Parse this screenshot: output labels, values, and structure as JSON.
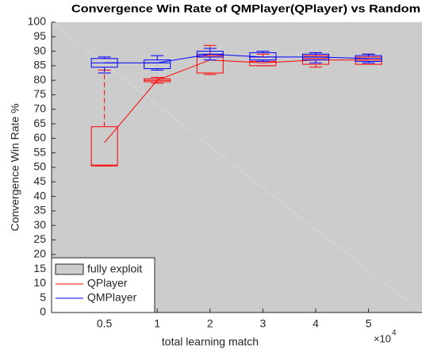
{
  "chart_data": {
    "type": "box",
    "title": "Convergence Win Rate of QMPlayer(QPlayer) vs Random",
    "x_label": "total learning match",
    "x_multiplier": {
      "base": "×10",
      "exponent": "4"
    },
    "y_label": "Convergence Win Rate %",
    "categories": [
      "0.5",
      "1",
      "2",
      "3",
      "4",
      "5"
    ],
    "ylim": [
      0,
      100
    ],
    "yticks": [
      0,
      5,
      10,
      15,
      20,
      25,
      30,
      35,
      40,
      45,
      50,
      55,
      60,
      65,
      70,
      75,
      80,
      85,
      90,
      95,
      100
    ],
    "background": {
      "name": "fully exploit",
      "color": "#cccccc"
    },
    "legend": "lower left",
    "series": [
      {
        "name": "QPlayer",
        "color": "#ff0000",
        "whislo": [
          50.5,
          79,
          82,
          85,
          84.5,
          85.5
        ],
        "q1": [
          50.5,
          79.5,
          82.5,
          85,
          85.5,
          85.5
        ],
        "med": [
          50.8,
          80,
          88,
          86.5,
          87.5,
          87
        ],
        "q3": [
          64,
          80.5,
          88.5,
          88,
          88.5,
          88
        ],
        "whishi": [
          83.5,
          81,
          92,
          89,
          89.5,
          89
        ],
        "mean": [
          58.5,
          80,
          87,
          86,
          87,
          87
        ]
      },
      {
        "name": "QMPlayer",
        "color": "#0000ff",
        "whislo": [
          82.5,
          83.5,
          87,
          86.5,
          86,
          86
        ],
        "q1": [
          84.5,
          84,
          88,
          87,
          87,
          86.5
        ],
        "med": [
          86,
          86,
          89,
          88,
          88,
          87.5
        ],
        "q3": [
          87.5,
          87,
          90,
          89.5,
          89,
          88.5
        ],
        "whishi": [
          88,
          88.5,
          91,
          90,
          89.5,
          89
        ],
        "mean": [
          86,
          86,
          89,
          88,
          88,
          87.5
        ]
      }
    ]
  }
}
